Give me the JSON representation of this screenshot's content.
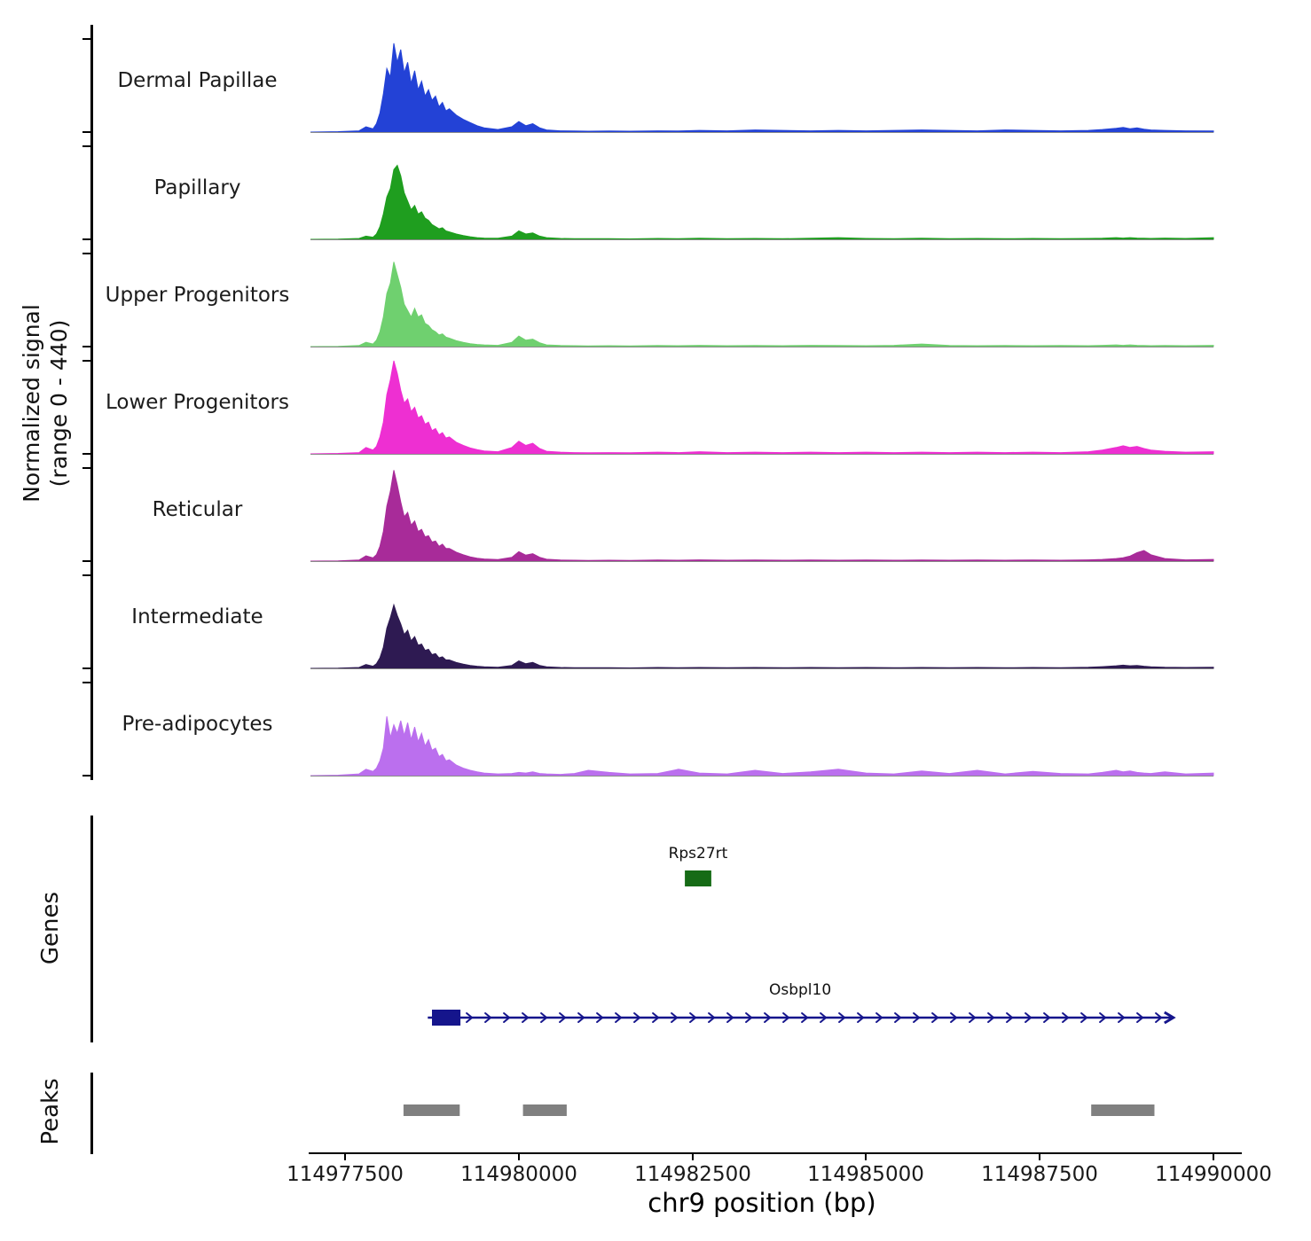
{
  "chart_data": {
    "type": "area",
    "title": "",
    "xlabel": "chr9 position (bp)",
    "ylabel_line1": "Normalized signal",
    "ylabel_line2": "(range 0 - 440)",
    "genes_section_label": "Genes",
    "peaks_section_label": "Peaks",
    "x_range": [
      114977000,
      114990000
    ],
    "y_range": [
      0,
      440
    ],
    "x_ticks": [
      114977500,
      114980000,
      114982500,
      114985000,
      114987500,
      114990000
    ],
    "x_tick_labels": [
      "114977500",
      "114980000",
      "114982500",
      "114985000",
      "114987500",
      "114990000"
    ],
    "x": [
      114977000,
      114977400,
      114977700,
      114977800,
      114977900,
      114977950,
      114978000,
      114978050,
      114978100,
      114978150,
      114978200,
      114978250,
      114978300,
      114978350,
      114978400,
      114978450,
      114978500,
      114978550,
      114978600,
      114978650,
      114978700,
      114978750,
      114978800,
      114978850,
      114978900,
      114978950,
      114979000,
      114979100,
      114979200,
      114979300,
      114979400,
      114979500,
      114979700,
      114979900,
      114980000,
      114980100,
      114980200,
      114980300,
      114980400,
      114980600,
      114980800,
      114981000,
      114981300,
      114981600,
      114982000,
      114982300,
      114982600,
      114983000,
      114983400,
      114983800,
      114984200,
      114984600,
      114985000,
      114985400,
      114985800,
      114986200,
      114986600,
      114987000,
      114987400,
      114987800,
      114988200,
      114988400,
      114988600,
      114988700,
      114988800,
      114988900,
      114989000,
      114989100,
      114989300,
      114989600,
      114990000
    ],
    "series": [
      {
        "name": "Dermal Papillae",
        "color": "#2342d6",
        "values": [
          0,
          2,
          6,
          25,
          15,
          40,
          90,
          180,
          300,
          260,
          420,
          330,
          390,
          280,
          330,
          230,
          290,
          200,
          240,
          170,
          200,
          150,
          170,
          120,
          140,
          100,
          110,
          80,
          60,
          45,
          30,
          20,
          12,
          25,
          50,
          30,
          40,
          20,
          10,
          6,
          5,
          4,
          5,
          4,
          6,
          5,
          8,
          6,
          10,
          8,
          6,
          8,
          6,
          8,
          10,
          8,
          6,
          10,
          8,
          6,
          8,
          12,
          18,
          22,
          16,
          20,
          14,
          10,
          8,
          6,
          5
        ]
      },
      {
        "name": "Papillary",
        "color": "#1f9e1f",
        "values": [
          0,
          1,
          4,
          15,
          10,
          25,
          60,
          120,
          200,
          240,
          330,
          350,
          300,
          220,
          180,
          140,
          160,
          120,
          130,
          100,
          90,
          70,
          60,
          50,
          55,
          40,
          35,
          25,
          18,
          12,
          8,
          6,
          5,
          15,
          40,
          25,
          30,
          15,
          8,
          4,
          3,
          3,
          3,
          2,
          4,
          3,
          5,
          3,
          4,
          3,
          5,
          8,
          4,
          3,
          5,
          3,
          4,
          3,
          4,
          3,
          4,
          5,
          8,
          6,
          8,
          6,
          5,
          4,
          6,
          4,
          8
        ]
      },
      {
        "name": "Upper Progenitors",
        "color": "#6fd06f",
        "values": [
          0,
          1,
          5,
          20,
          12,
          30,
          70,
          140,
          250,
          300,
          400,
          340,
          280,
          200,
          170,
          140,
          180,
          140,
          150,
          110,
          100,
          80,
          70,
          55,
          60,
          45,
          40,
          28,
          20,
          14,
          10,
          8,
          6,
          20,
          50,
          30,
          35,
          18,
          8,
          5,
          4,
          3,
          4,
          3,
          5,
          4,
          6,
          4,
          5,
          4,
          6,
          5,
          4,
          6,
          12,
          5,
          4,
          5,
          4,
          5,
          4,
          6,
          8,
          6,
          8,
          6,
          5,
          4,
          5,
          4,
          6
        ]
      },
      {
        "name": "Lower Progenitors",
        "color": "#ee2fd2",
        "values": [
          0,
          2,
          6,
          30,
          18,
          35,
          80,
          150,
          280,
          350,
          440,
          380,
          300,
          240,
          260,
          200,
          220,
          170,
          180,
          140,
          150,
          110,
          120,
          90,
          100,
          75,
          80,
          55,
          40,
          28,
          20,
          14,
          10,
          30,
          60,
          40,
          50,
          25,
          12,
          8,
          6,
          5,
          6,
          5,
          8,
          6,
          10,
          6,
          8,
          6,
          8,
          6,
          8,
          6,
          8,
          6,
          8,
          6,
          8,
          6,
          10,
          18,
          30,
          38,
          30,
          35,
          25,
          18,
          12,
          8,
          10
        ]
      },
      {
        "name": "Reticular",
        "color": "#a82b99",
        "values": [
          0,
          1,
          5,
          25,
          15,
          30,
          70,
          140,
          260,
          330,
          430,
          360,
          280,
          210,
          230,
          170,
          190,
          140,
          150,
          115,
          120,
          90,
          95,
          70,
          80,
          60,
          60,
          42,
          30,
          20,
          14,
          10,
          7,
          18,
          45,
          28,
          35,
          18,
          9,
          5,
          4,
          3,
          4,
          3,
          5,
          4,
          6,
          4,
          5,
          4,
          5,
          4,
          5,
          4,
          5,
          4,
          5,
          4,
          5,
          4,
          6,
          8,
          12,
          16,
          24,
          40,
          50,
          30,
          12,
          6,
          8
        ]
      },
      {
        "name": "Intermediate",
        "color": "#2e1a52",
        "values": [
          0,
          1,
          4,
          18,
          10,
          22,
          50,
          100,
          190,
          240,
          300,
          250,
          210,
          160,
          180,
          130,
          150,
          110,
          115,
          85,
          90,
          65,
          70,
          50,
          55,
          40,
          40,
          28,
          20,
          14,
          10,
          7,
          5,
          14,
          35,
          22,
          28,
          14,
          7,
          4,
          3,
          3,
          3,
          2,
          4,
          3,
          4,
          3,
          4,
          3,
          4,
          3,
          4,
          3,
          4,
          3,
          4,
          3,
          4,
          3,
          5,
          8,
          12,
          15,
          12,
          14,
          10,
          7,
          5,
          4,
          5
        ]
      },
      {
        "name": "Pre-adipocytes",
        "color": "#bb6fee",
        "values": [
          0,
          2,
          8,
          30,
          20,
          35,
          70,
          130,
          280,
          180,
          240,
          200,
          260,
          190,
          250,
          170,
          230,
          160,
          200,
          140,
          170,
          120,
          130,
          90,
          100,
          70,
          75,
          50,
          35,
          25,
          18,
          12,
          8,
          10,
          15,
          12,
          18,
          10,
          8,
          6,
          10,
          25,
          15,
          8,
          10,
          30,
          12,
          8,
          25,
          10,
          18,
          30,
          12,
          8,
          22,
          10,
          25,
          8,
          20,
          10,
          8,
          15,
          25,
          18,
          22,
          15,
          12,
          10,
          18,
          8,
          12
        ]
      }
    ],
    "genes": [
      {
        "name": "Rps27rt",
        "start": 114982390,
        "end": 114982770,
        "color": "#166b16",
        "type": "box"
      },
      {
        "name": "Osbpl10",
        "start": 114978690,
        "end": 114989410,
        "thick_start": 114978750,
        "thick_end": 114979160,
        "strand": "+",
        "color": "#15158c",
        "type": "arrow_line"
      }
    ],
    "peaks": [
      {
        "start": 114978340,
        "end": 114979150
      },
      {
        "start": 114980060,
        "end": 114980690
      },
      {
        "start": 114988240,
        "end": 114989150
      }
    ],
    "peak_color": "#808080",
    "baseline_color": "#8a8a8a"
  }
}
